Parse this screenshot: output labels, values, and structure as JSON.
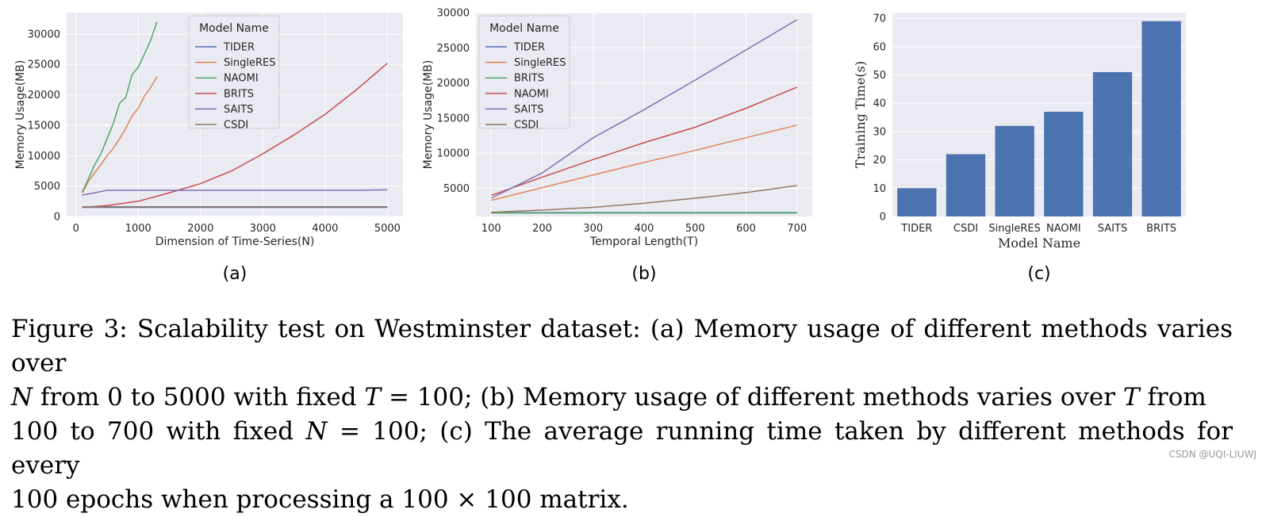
{
  "chart_data": [
    {
      "id": "a",
      "type": "line",
      "panel_label": "(a)",
      "xlabel": "Dimension of Time-Series(N)",
      "ylabel": "Memory Usage(MB)",
      "xlim": [
        -150,
        5250
      ],
      "ylim": [
        0,
        33500
      ],
      "xticks": [
        0,
        1000,
        2000,
        3000,
        4000,
        5000
      ],
      "yticks": [
        0,
        5000,
        10000,
        15000,
        20000,
        25000,
        30000
      ],
      "grid": true,
      "legend": {
        "title": "Model Name",
        "placement": "top-center"
      },
      "series": [
        {
          "name": "TIDER",
          "color": "#4c72b0",
          "x": [
            100,
            500,
            1000,
            2000,
            3000,
            4000,
            5000
          ],
          "y": [
            1500,
            1500,
            1500,
            1500,
            1500,
            1500,
            1500
          ]
        },
        {
          "name": "SingleRES",
          "color": "#dd8452",
          "x": [
            100,
            200,
            300,
            400,
            500,
            600,
            700,
            800,
            900,
            1000,
            1100,
            1200,
            1300
          ],
          "y": [
            3800,
            5800,
            7200,
            8500,
            10000,
            11200,
            12800,
            14500,
            16500,
            17800,
            19800,
            21200,
            23000
          ]
        },
        {
          "name": "NAOMI",
          "color": "#55a868",
          "x": [
            100,
            200,
            300,
            400,
            500,
            600,
            700,
            800,
            900,
            1000,
            1100,
            1200,
            1300
          ],
          "y": [
            4000,
            6200,
            8500,
            10300,
            12800,
            15300,
            18600,
            19600,
            23300,
            24500,
            26700,
            29000,
            32000
          ]
        },
        {
          "name": "BRITS",
          "color": "#c44e52",
          "x": [
            100,
            500,
            1000,
            1500,
            2000,
            2500,
            3000,
            3500,
            4000,
            4500,
            5000
          ],
          "y": [
            1500,
            1800,
            2500,
            3900,
            5400,
            7500,
            10300,
            13400,
            16800,
            20800,
            25200
          ]
        },
        {
          "name": "SAITS",
          "color": "#8172b3",
          "x": [
            100,
            500,
            1000,
            2000,
            3000,
            4000,
            4500,
            5000
          ],
          "y": [
            3500,
            4300,
            4300,
            4300,
            4300,
            4300,
            4300,
            4400
          ]
        },
        {
          "name": "CSDI",
          "color": "#937860",
          "x": [
            100,
            500,
            1000,
            2000,
            3000,
            4000,
            5000
          ],
          "y": [
            1600,
            1600,
            1600,
            1600,
            1600,
            1600,
            1600
          ]
        }
      ]
    },
    {
      "id": "b",
      "type": "line",
      "panel_label": "(b)",
      "xlabel": "Temporal Length(T)",
      "ylabel": "Memory Usage(MB)",
      "xlim": [
        70,
        730
      ],
      "ylim": [
        1000,
        30000
      ],
      "xticks": [
        100,
        200,
        300,
        400,
        500,
        600,
        700
      ],
      "yticks": [
        5000,
        10000,
        15000,
        20000,
        25000,
        30000
      ],
      "grid": true,
      "legend": {
        "title": "Model Name",
        "placement": "top-left"
      },
      "series": [
        {
          "name": "TIDER",
          "color": "#4c72b0",
          "x": [
            100,
            200,
            300,
            400,
            500,
            600,
            700
          ],
          "y": [
            1550,
            1550,
            1550,
            1550,
            1550,
            1550,
            1550
          ]
        },
        {
          "name": "SingleRES",
          "color": "#dd8452",
          "x": [
            100,
            200,
            300,
            400,
            500,
            600,
            700
          ],
          "y": [
            3300,
            5100,
            6900,
            8700,
            10400,
            12200,
            14000
          ]
        },
        {
          "name": "BRITS",
          "color": "#55a868",
          "x": [
            100,
            200,
            300,
            400,
            500,
            600,
            700
          ],
          "y": [
            1500,
            1500,
            1500,
            1500,
            1500,
            1500,
            1500
          ]
        },
        {
          "name": "NAOMI",
          "color": "#c44e52",
          "x": [
            100,
            200,
            300,
            400,
            500,
            600,
            700
          ],
          "y": [
            4000,
            6600,
            9100,
            11500,
            13700,
            16400,
            19400
          ]
        },
        {
          "name": "SAITS",
          "color": "#8172b3",
          "x": [
            100,
            200,
            300,
            400,
            500,
            600,
            700
          ],
          "y": [
            3600,
            7200,
            12200,
            16200,
            20400,
            24700,
            29000
          ]
        },
        {
          "name": "CSDI",
          "color": "#937860",
          "x": [
            100,
            200,
            300,
            400,
            500,
            600,
            700
          ],
          "y": [
            1600,
            1900,
            2300,
            2900,
            3600,
            4400,
            5400
          ]
        }
      ]
    },
    {
      "id": "c",
      "type": "bar",
      "panel_label": "(c)",
      "xlabel": "Model Name",
      "ylabel": "Training Time(s)",
      "ylim": [
        0,
        72
      ],
      "yticks": [
        0,
        10,
        20,
        30,
        40,
        50,
        60,
        70
      ],
      "grid": true,
      "color": "#4c72b0",
      "categories": [
        "TIDER",
        "CSDI",
        "SingleRES",
        "NAOMI",
        "SAITS",
        "BRITS"
      ],
      "values": [
        10,
        22,
        32,
        37,
        51,
        69
      ]
    }
  ],
  "caption": {
    "line1": "Figure 3: Scalability test on Westminster dataset: (a) Memory usage of different methods varies over",
    "line2_parts": [
      "N",
      " from 0 to 5000 with fixed ",
      "T",
      " = 100; (b) Memory usage of different methods varies over ",
      "T",
      " from"
    ],
    "line3_parts": [
      "100 to 700 with fixed ",
      "N",
      " = 100; (c) The average running time taken by different methods for every"
    ],
    "line4": "100 epochs when processing a 100 × 100 matrix."
  },
  "watermark": "CSDN @UQI-LIUWJ"
}
